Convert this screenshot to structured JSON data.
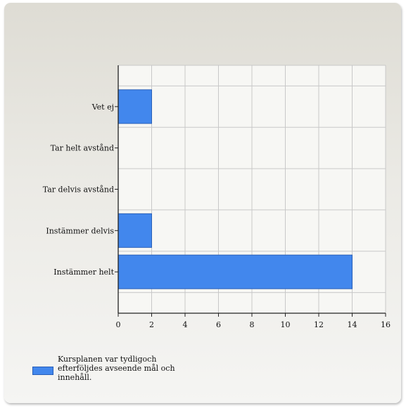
{
  "chart_data": {
    "type": "bar",
    "orientation": "horizontal",
    "categories": [
      "Vet ej",
      "Tar helt avstånd",
      "Tar delvis avstånd",
      "Instämmer delvis",
      "Instämmer helt"
    ],
    "series": [
      {
        "name": "Kursplanen var tydligoch efterföljdes avseende mål och innehåll.",
        "values": [
          2,
          0,
          0,
          2,
          14
        ],
        "color": "#4287ed"
      }
    ],
    "xlim": [
      0,
      16
    ],
    "xticks": [
      0,
      2,
      4,
      6,
      8,
      10,
      12,
      14,
      16
    ],
    "grid": true,
    "legend_position": "bottom-left"
  }
}
